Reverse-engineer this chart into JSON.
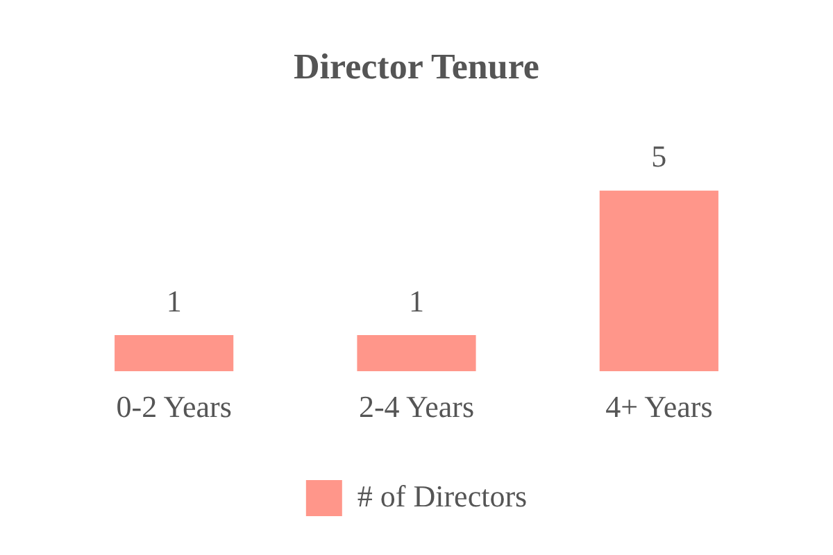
{
  "chart_data": {
    "type": "bar",
    "title": "Director Tenure",
    "categories": [
      "0-2 Years",
      "2-4 Years",
      "4+ Years"
    ],
    "series": [
      {
        "name": "# of Directors",
        "color": "#ff968a",
        "values": [
          1,
          1,
          5
        ]
      }
    ],
    "data_labels": true,
    "legend": "bottom",
    "grid": false
  }
}
